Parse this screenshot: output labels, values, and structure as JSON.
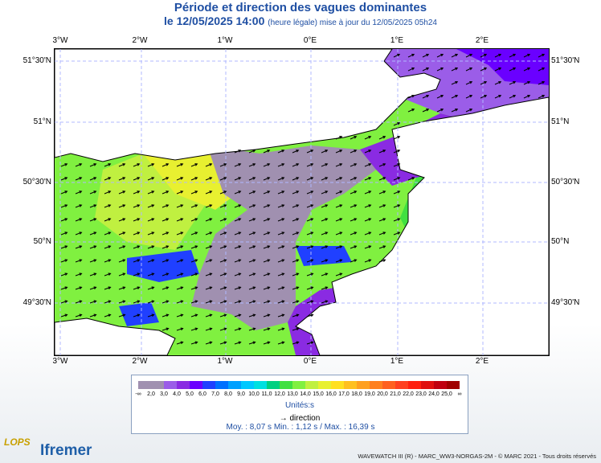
{
  "title": "Période et direction des vagues dominantes",
  "subtitle": {
    "date": "le 12/05/2025 14:00",
    "note": "(heure légale) mise à jour du 12/05/2025 05h24"
  },
  "map": {
    "lon_ticks": [
      "3°W",
      "2°W",
      "1°W",
      "0°E",
      "1°E",
      "2°E"
    ],
    "lat_ticks": [
      "51°30'N",
      "51°N",
      "50°30'N",
      "50°N",
      "49°30'N"
    ],
    "extent": {
      "lon": [
        -3.1,
        2.7
      ],
      "lat": [
        49.23,
        51.77
      ]
    },
    "dominant_direction": "north-east"
  },
  "legend": {
    "labels": [
      "-∞",
      "2,0",
      "3,0",
      "4,0",
      "5,0",
      "6,0",
      "7,0",
      "8,0",
      "9,0",
      "10,0",
      "11,0",
      "12,0",
      "13,0",
      "14,0",
      "15,0",
      "16,0",
      "17,0",
      "18,0",
      "19,0",
      "20,0",
      "21,0",
      "22,0",
      "23,0",
      "24,0",
      "25,0",
      "∞"
    ],
    "colors": [
      "#a090b0",
      "#a090b0",
      "#9b5de8",
      "#8a2be2",
      "#6a00ff",
      "#2040ff",
      "#0070ff",
      "#00a0ff",
      "#00c8ff",
      "#00e0e0",
      "#00d080",
      "#40e040",
      "#80f040",
      "#c0f040",
      "#e8f030",
      "#ffe020",
      "#ffc020",
      "#ffa020",
      "#ff8020",
      "#ff6020",
      "#ff4020",
      "#ff2010",
      "#e01010",
      "#c00010",
      "#a00000"
    ],
    "units": "Unités:s",
    "direction_label": "direction"
  },
  "stats": "Moy. : 8,07 s   Min. : 1,12 s / Max. : 16,39 s",
  "footer": "WAVEWATCH III (R) - MARC_WW3-NORGAS-2M - © MARC 2021 - Tous droits réservés",
  "logos": {
    "lops": "LOPS",
    "ifremer": "Ifremer"
  }
}
